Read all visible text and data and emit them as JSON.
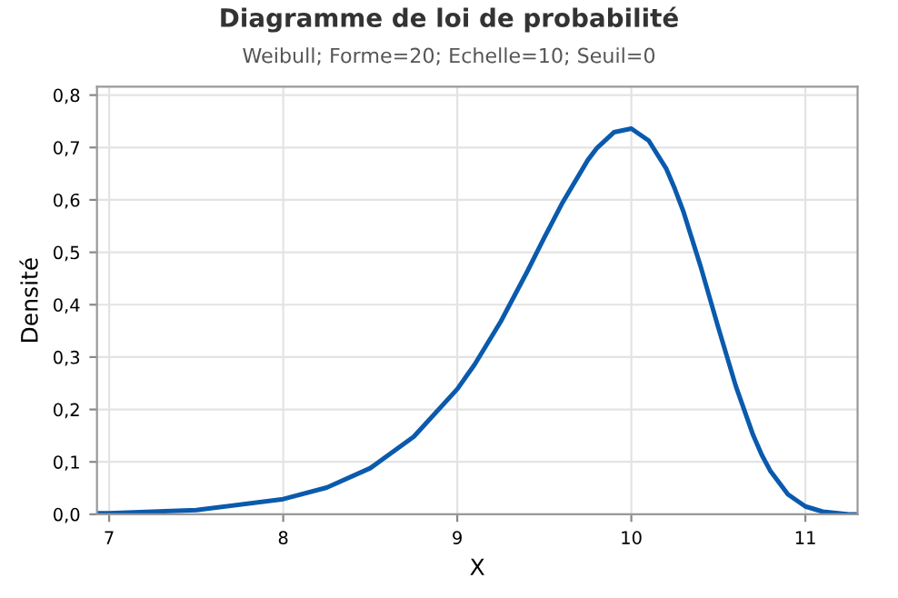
{
  "chart_data": {
    "type": "line",
    "title": "Diagramme de loi de probabilité",
    "subtitle": "Weibull; Forme=20; Echelle=10; Seuil=0",
    "xlabel": "X",
    "ylabel": "Densité",
    "x": [
      6.93,
      7.0,
      7.5,
      8.0,
      8.25,
      8.5,
      8.75,
      9.0,
      9.1,
      9.25,
      9.4,
      9.5,
      9.6,
      9.75,
      9.8,
      9.9,
      10.0,
      10.1,
      10.2,
      10.25,
      10.3,
      10.4,
      10.5,
      10.6,
      10.7,
      10.75,
      10.8,
      10.9,
      11.0,
      11.1,
      11.25,
      11.3
    ],
    "series": [
      {
        "color": "#0a5aad",
        "values": [
          0.002,
          0.002,
          0.008,
          0.029,
          0.051,
          0.088,
          0.148,
          0.239,
          0.286,
          0.368,
          0.462,
          0.528,
          0.592,
          0.676,
          0.698,
          0.729,
          0.736,
          0.713,
          0.66,
          0.621,
          0.577,
          0.471,
          0.356,
          0.245,
          0.151,
          0.113,
          0.082,
          0.038,
          0.015,
          0.005,
          0.0,
          0.0
        ]
      }
    ],
    "xlim": [
      6.93,
      11.3
    ],
    "ylim": [
      0,
      0.816
    ],
    "xticks": [
      7,
      8,
      9,
      10,
      11
    ],
    "yticks": [
      {
        "value": 0,
        "label": "0,0"
      },
      {
        "value": 0.1,
        "label": "0,1"
      },
      {
        "value": 0.2,
        "label": "0,2"
      },
      {
        "value": 0.3,
        "label": "0,3"
      },
      {
        "value": 0.4,
        "label": "0,4"
      },
      {
        "value": 0.5,
        "label": "0,5"
      },
      {
        "value": 0.6,
        "label": "0,6"
      },
      {
        "value": 0.7,
        "label": "0,7"
      },
      {
        "value": 0.8,
        "label": "0,8"
      }
    ],
    "grid": true,
    "marker": "none",
    "line_style": "solid"
  }
}
